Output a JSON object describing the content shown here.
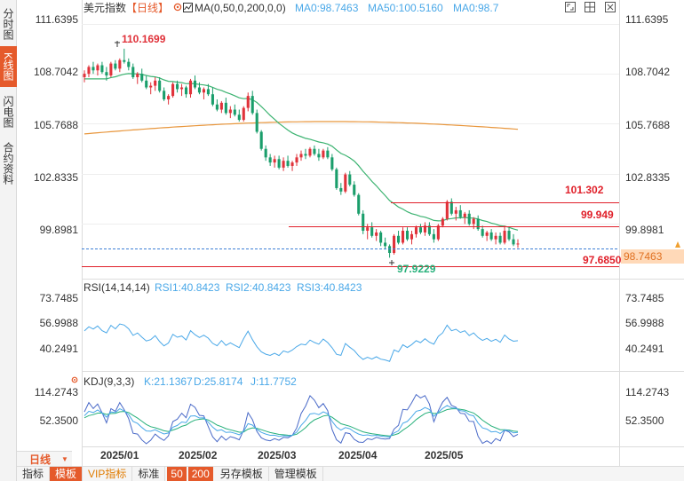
{
  "sidebar": [
    {
      "label": "分时图",
      "active": false
    },
    {
      "label": "K线图",
      "active": true
    },
    {
      "label": "闪电图",
      "active": false
    },
    {
      "label": "合约资料",
      "active": false
    }
  ],
  "header": {
    "title": "美元指数",
    "period": "【日线】",
    "ma_label": "MA(0,50,0,200,0,0)",
    "ma_values": [
      "MA0:98.7463",
      "MA50:100.5160",
      "MA0:98.7"
    ]
  },
  "toolbar_icons": [
    "expand-icon",
    "grid-icon",
    "close-icon"
  ],
  "colors": {
    "up": "#e0323a",
    "down": "#1a9e6b",
    "ma50": "#3cb371",
    "ma200": "#e8963c",
    "line": "#e0202a",
    "dashed": "#3d7fd6",
    "current_bg": "#ffd9b8",
    "rsi": "#4aa8e8",
    "kdj_k": "#4aa8e8",
    "kdj_d": "#26b07a",
    "kdj_j": "#4a6ac8",
    "grid": "#eeeeee"
  },
  "price_axis": [
    "111.6395",
    "108.7042",
    "105.7688",
    "102.8335",
    "99.8981"
  ],
  "annotations": {
    "high": "110.1699",
    "low": "97.9229",
    "line1": "101.302",
    "line2": "99.949",
    "line3": "97.6850",
    "current": "98.7463"
  },
  "rsi": {
    "title": "RSI(14,14,14)",
    "values": [
      "RSI1:40.8423",
      "RSI2:40.8423",
      "RSI3:40.8423"
    ],
    "axis": [
      "73.7485",
      "56.9988",
      "40.2491"
    ]
  },
  "kdj": {
    "title": "KDJ(9,3,3)",
    "values": [
      "K:21.1367",
      "D:25.8174",
      "J:11.7752"
    ],
    "axis": [
      "114.2743",
      "52.3500"
    ]
  },
  "x_axis": [
    "2025/01",
    "2025/02",
    "2025/03",
    "2025/04",
    "2025/05"
  ],
  "bottom": {
    "period": "日线",
    "buttons": [
      "指标",
      "模板",
      "VIP指标",
      "标准"
    ],
    "ma_periods": [
      "50",
      "200"
    ],
    "tail": [
      "另存模板",
      "管理模板"
    ]
  },
  "chart_data": {
    "type": "candlestick",
    "title": "美元指数 【日线】",
    "price_ticks": [
      111.6395,
      108.7042,
      105.7688,
      102.8335,
      99.8981
    ],
    "ylim": [
      96.9,
      112.4
    ],
    "x_ticks": [
      "2025/01",
      "2025/02",
      "2025/03",
      "2025/04",
      "2025/05"
    ],
    "current_price": 98.7463,
    "high_annotation": 110.1699,
    "low_annotation": 97.9229,
    "horizontal_lines": [
      101.302,
      99.949,
      97.685
    ],
    "candles": [
      [
        108.5,
        108.9,
        108.2,
        108.7
      ],
      [
        108.7,
        109.2,
        108.5,
        109.1
      ],
      [
        109.1,
        109.4,
        108.7,
        108.9
      ],
      [
        108.9,
        109.3,
        108.6,
        109.2
      ],
      [
        109.2,
        109.4,
        108.7,
        108.8
      ],
      [
        108.8,
        109.1,
        108.3,
        108.6
      ],
      [
        108.6,
        109.4,
        108.5,
        109.3
      ],
      [
        109.3,
        109.5,
        108.9,
        109.0
      ],
      [
        109.0,
        109.6,
        108.8,
        109.5
      ],
      [
        109.5,
        110.17,
        109.3,
        109.4
      ],
      [
        109.4,
        109.6,
        108.9,
        109.1
      ],
      [
        109.1,
        109.3,
        108.4,
        108.5
      ],
      [
        108.5,
        108.8,
        108.1,
        108.7
      ],
      [
        108.7,
        109.0,
        108.2,
        108.3
      ],
      [
        108.3,
        108.6,
        107.8,
        107.9
      ],
      [
        107.9,
        108.2,
        107.5,
        108.0
      ],
      [
        108.0,
        108.5,
        107.7,
        108.3
      ],
      [
        108.3,
        108.5,
        107.6,
        107.7
      ],
      [
        107.7,
        107.9,
        107.1,
        107.2
      ],
      [
        107.2,
        107.5,
        106.9,
        107.4
      ],
      [
        107.4,
        108.2,
        107.3,
        108.1
      ],
      [
        108.1,
        108.3,
        107.6,
        107.8
      ],
      [
        107.8,
        108.1,
        107.4,
        107.9
      ],
      [
        107.9,
        108.0,
        107.3,
        107.5
      ],
      [
        107.5,
        108.4,
        107.3,
        108.3
      ],
      [
        108.3,
        108.6,
        107.8,
        107.9
      ],
      [
        107.9,
        108.2,
        107.5,
        107.6
      ],
      [
        107.6,
        107.9,
        107.2,
        107.8
      ],
      [
        107.8,
        108.1,
        107.4,
        107.5
      ],
      [
        107.5,
        107.9,
        106.8,
        106.9
      ],
      [
        106.9,
        107.2,
        106.5,
        106.6
      ],
      [
        106.6,
        107.1,
        106.4,
        107.0
      ],
      [
        107.0,
        107.3,
        106.3,
        106.4
      ],
      [
        106.4,
        106.8,
        106.1,
        106.6
      ],
      [
        106.6,
        106.9,
        106.2,
        106.3
      ],
      [
        106.3,
        106.6,
        105.9,
        106.0
      ],
      [
        106.0,
        106.8,
        105.9,
        106.7
      ],
      [
        106.7,
        107.6,
        106.5,
        107.4
      ],
      [
        107.4,
        107.7,
        106.3,
        106.4
      ],
      [
        106.4,
        106.6,
        105.2,
        105.3
      ],
      [
        105.3,
        105.4,
        104.2,
        104.3
      ],
      [
        104.3,
        104.5,
        103.6,
        103.8
      ],
      [
        103.8,
        104.0,
        103.3,
        103.5
      ],
      [
        103.5,
        103.9,
        103.2,
        103.7
      ],
      [
        103.7,
        103.9,
        103.1,
        103.2
      ],
      [
        103.2,
        103.8,
        103.0,
        103.6
      ],
      [
        103.6,
        103.9,
        103.2,
        103.3
      ],
      [
        103.3,
        103.6,
        103.0,
        103.5
      ],
      [
        103.5,
        104.0,
        103.3,
        103.8
      ],
      [
        103.8,
        104.2,
        103.6,
        104.0
      ],
      [
        104.0,
        104.3,
        103.7,
        103.9
      ],
      [
        103.9,
        104.4,
        103.8,
        104.3
      ],
      [
        104.3,
        104.5,
        103.9,
        104.0
      ],
      [
        104.0,
        104.3,
        103.6,
        103.8
      ],
      [
        103.8,
        104.3,
        103.7,
        104.2
      ],
      [
        104.2,
        104.4,
        103.7,
        103.8
      ],
      [
        103.8,
        104.0,
        103.0,
        103.1
      ],
      [
        103.1,
        103.2,
        101.9,
        102.0
      ],
      [
        102.0,
        102.3,
        101.6,
        101.8
      ],
      [
        101.8,
        102.9,
        101.7,
        102.8
      ],
      [
        102.8,
        103.0,
        102.1,
        102.2
      ],
      [
        102.2,
        102.4,
        101.5,
        101.6
      ],
      [
        101.6,
        101.7,
        100.4,
        100.5
      ],
      [
        100.5,
        100.7,
        99.3,
        99.5
      ],
      [
        99.5,
        99.9,
        99.0,
        99.7
      ],
      [
        99.7,
        100.0,
        99.1,
        99.2
      ],
      [
        99.2,
        99.6,
        98.9,
        99.4
      ],
      [
        99.4,
        99.5,
        98.6,
        98.8
      ],
      [
        98.8,
        99.1,
        98.4,
        98.6
      ],
      [
        98.6,
        98.7,
        97.92,
        98.2
      ],
      [
        98.2,
        99.3,
        98.1,
        99.2
      ],
      [
        99.2,
        99.5,
        98.7,
        98.8
      ],
      [
        98.8,
        99.7,
        98.7,
        99.5
      ],
      [
        99.5,
        99.7,
        98.9,
        99.0
      ],
      [
        99.0,
        99.5,
        98.7,
        99.3
      ],
      [
        99.3,
        99.8,
        99.1,
        99.7
      ],
      [
        99.7,
        99.9,
        99.3,
        99.4
      ],
      [
        99.4,
        100.0,
        99.2,
        99.8
      ],
      [
        99.8,
        100.0,
        99.2,
        99.3
      ],
      [
        99.3,
        99.6,
        98.8,
        99.0
      ],
      [
        99.0,
        99.9,
        98.9,
        99.8
      ],
      [
        99.8,
        100.3,
        99.7,
        100.2
      ],
      [
        100.2,
        101.3,
        100.1,
        101.2
      ],
      [
        101.2,
        101.4,
        100.4,
        100.5
      ],
      [
        100.5,
        100.9,
        100.1,
        100.7
      ],
      [
        100.7,
        101.0,
        100.2,
        100.3
      ],
      [
        100.3,
        100.6,
        99.9,
        100.5
      ],
      [
        100.5,
        100.7,
        99.8,
        99.9
      ],
      [
        99.9,
        100.3,
        99.6,
        100.2
      ],
      [
        100.2,
        100.4,
        99.5,
        99.6
      ],
      [
        99.6,
        99.8,
        99.1,
        99.2
      ],
      [
        99.2,
        99.5,
        98.9,
        99.4
      ],
      [
        99.4,
        99.6,
        98.9,
        99.0
      ],
      [
        99.0,
        99.4,
        98.7,
        99.2
      ],
      [
        99.2,
        99.4,
        98.7,
        98.8
      ],
      [
        98.8,
        99.8,
        98.7,
        99.5
      ],
      [
        99.5,
        99.7,
        98.9,
        99.0
      ],
      [
        99.0,
        99.3,
        98.6,
        98.7
      ],
      [
        98.7,
        99.0,
        98.5,
        98.75
      ]
    ]
  }
}
